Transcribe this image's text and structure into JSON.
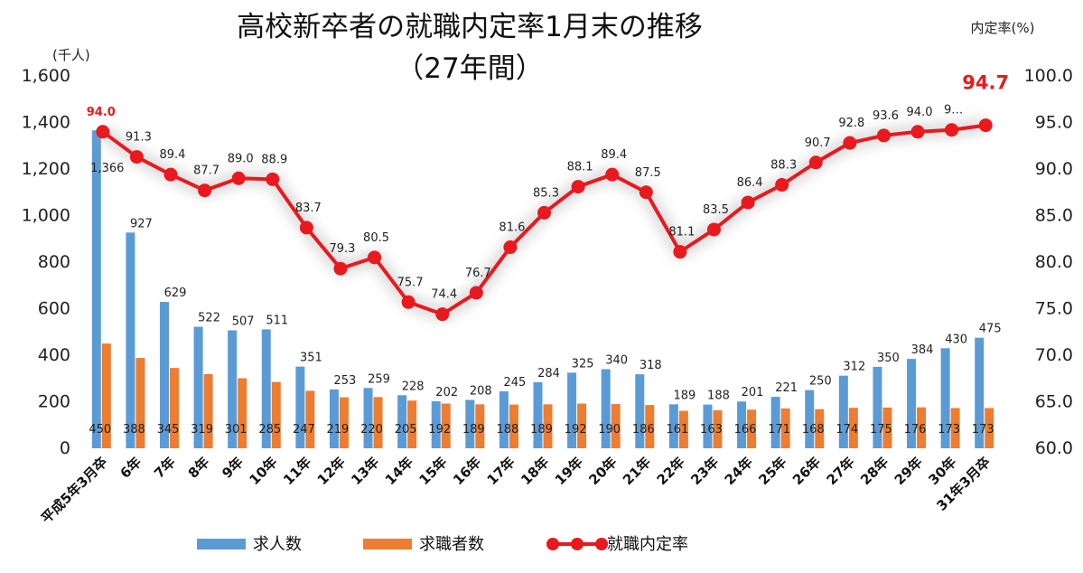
{
  "chart_data": {
    "type": "bar+line",
    "title": "高校新卒者の就職内定率1月末の推移",
    "subtitle": "（27年間）",
    "y_left_unit": "(千人)",
    "y_right_unit": "内定率(%)",
    "y_left_ticks": [
      "0",
      "200",
      "400",
      "600",
      "800",
      "1,000",
      "1,200",
      "1,400",
      "1,600"
    ],
    "y_right_ticks": [
      "60.0",
      "65.0",
      "70.0",
      "75.0",
      "80.0",
      "85.0",
      "90.0",
      "95.0",
      "100.0"
    ],
    "ylim_left": [
      0,
      1600
    ],
    "ylim_right": [
      60,
      100
    ],
    "categories": [
      "平成5年3月卒",
      "6年",
      "7年",
      "8年",
      "9年",
      "10年",
      "11年",
      "12年",
      "13年",
      "14年",
      "15年",
      "16年",
      "17年",
      "18年",
      "19年",
      "20年",
      "21年",
      "22年",
      "23年",
      "24年",
      "25年",
      "26年",
      "27年",
      "28年",
      "29年",
      "30年",
      "31年3月卒"
    ],
    "series": [
      {
        "name": "求人数",
        "type": "bar",
        "color": "#5b9bd5",
        "values": [
          1366,
          927,
          629,
          522,
          507,
          511,
          351,
          253,
          259,
          228,
          202,
          208,
          245,
          284,
          325,
          340,
          318,
          189,
          188,
          201,
          221,
          250,
          312,
          350,
          384,
          430,
          475
        ],
        "labels": [
          "1,366",
          "927",
          "629",
          "522",
          "507",
          "511",
          "351",
          "253",
          "259",
          "228",
          "202",
          "208",
          "245",
          "284",
          "325",
          "340",
          "318",
          "189",
          "188",
          "201",
          "221",
          "250",
          "312",
          "350",
          "384",
          "430",
          "475"
        ]
      },
      {
        "name": "求職者数",
        "type": "bar",
        "color": "#ed7d31",
        "values": [
          450,
          388,
          345,
          319,
          301,
          285,
          247,
          219,
          220,
          205,
          192,
          189,
          188,
          189,
          192,
          190,
          186,
          161,
          163,
          166,
          171,
          168,
          174,
          175,
          176,
          173,
          173
        ],
        "labels": [
          "450",
          "388",
          "345",
          "319",
          "301",
          "285",
          "247",
          "219",
          "220",
          "205",
          "192",
          "189",
          "188",
          "189",
          "192",
          "190",
          "186",
          "161",
          "163",
          "166",
          "171",
          "168",
          "174",
          "175",
          "176",
          "173",
          "173"
        ]
      },
      {
        "name": "就職内定率",
        "type": "line",
        "axis": "right",
        "color": "#e8191f",
        "values": [
          94.0,
          91.3,
          89.4,
          87.7,
          89.0,
          88.9,
          83.7,
          79.3,
          80.5,
          75.7,
          74.4,
          76.7,
          81.6,
          85.3,
          88.1,
          89.4,
          87.5,
          81.1,
          83.5,
          86.4,
          88.3,
          90.7,
          92.8,
          93.6,
          94.0,
          94.2,
          94.7
        ],
        "labels": [
          "94.0",
          "91.3",
          "89.4",
          "87.7",
          "89.0",
          "88.9",
          "83.7",
          "79.3",
          "80.5",
          "75.7",
          "74.4",
          "76.7",
          "81.6",
          "85.3",
          "88.1",
          "89.4",
          "87.5",
          "81.1",
          "83.5",
          "86.4",
          "88.3",
          "90.7",
          "92.8",
          "93.6",
          "94.0",
          "9…",
          "94.7"
        ]
      }
    ],
    "legend": [
      "求人数",
      "求職者数",
      "就職内定率"
    ],
    "legend_position": "bottom",
    "grid": false
  }
}
